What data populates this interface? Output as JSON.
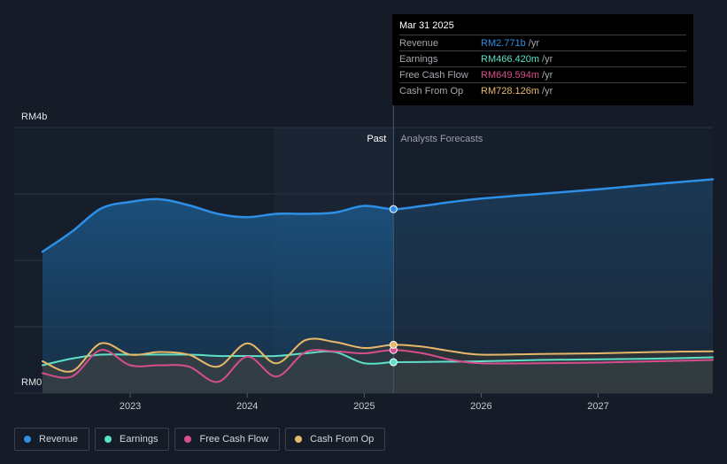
{
  "chart_data": {
    "type": "area",
    "currency": "RM",
    "y_axis": {
      "top_label": "RM4b",
      "bottom_label": "RM0",
      "max": 4.0,
      "min": 0
    },
    "x_ticks": [
      "2023",
      "2024",
      "2025",
      "2026",
      "2027"
    ],
    "x_tick_values": [
      2023.0,
      2024.0,
      2025.0,
      2026.0,
      2027.0
    ],
    "x_range": [
      2022.25,
      2027.98
    ],
    "divider_x": 2025.25,
    "past_start_x": 2024.23,
    "past_label": "Past",
    "forecast_label": "Analysts Forecasts",
    "series": [
      {
        "name": "Revenue",
        "color": "#2d8fe6",
        "points": [
          [
            2022.25,
            2.13
          ],
          [
            2022.5,
            2.43
          ],
          [
            2022.75,
            2.78
          ],
          [
            2023.0,
            2.88
          ],
          [
            2023.25,
            2.92
          ],
          [
            2023.5,
            2.83
          ],
          [
            2023.75,
            2.7
          ],
          [
            2024.0,
            2.65
          ],
          [
            2024.25,
            2.7
          ],
          [
            2024.5,
            2.7
          ],
          [
            2024.75,
            2.72
          ],
          [
            2025.0,
            2.82
          ],
          [
            2025.25,
            2.771
          ],
          [
            2025.5,
            2.82
          ],
          [
            2025.75,
            2.88
          ],
          [
            2026.0,
            2.93
          ],
          [
            2026.5,
            3.0
          ],
          [
            2027.0,
            3.07
          ],
          [
            2027.5,
            3.15
          ],
          [
            2027.98,
            3.22
          ]
        ]
      },
      {
        "name": "Earnings",
        "color": "#5ce0c8",
        "points": [
          [
            2022.25,
            0.42
          ],
          [
            2022.5,
            0.52
          ],
          [
            2022.75,
            0.58
          ],
          [
            2023.0,
            0.58
          ],
          [
            2023.5,
            0.58
          ],
          [
            2023.75,
            0.56
          ],
          [
            2024.0,
            0.56
          ],
          [
            2024.25,
            0.56
          ],
          [
            2024.5,
            0.6
          ],
          [
            2024.75,
            0.62
          ],
          [
            2025.0,
            0.45
          ],
          [
            2025.25,
            0.466
          ],
          [
            2025.5,
            0.47
          ],
          [
            2026.0,
            0.48
          ],
          [
            2026.5,
            0.5
          ],
          [
            2027.0,
            0.51
          ],
          [
            2027.5,
            0.52
          ],
          [
            2027.98,
            0.54
          ]
        ]
      },
      {
        "name": "Free Cash Flow",
        "color": "#d64e8c",
        "points": [
          [
            2022.25,
            0.3
          ],
          [
            2022.5,
            0.25
          ],
          [
            2022.75,
            0.65
          ],
          [
            2023.0,
            0.42
          ],
          [
            2023.25,
            0.42
          ],
          [
            2023.5,
            0.4
          ],
          [
            2023.75,
            0.17
          ],
          [
            2024.0,
            0.55
          ],
          [
            2024.25,
            0.25
          ],
          [
            2024.5,
            0.62
          ],
          [
            2024.75,
            0.63
          ],
          [
            2025.0,
            0.6
          ],
          [
            2025.25,
            0.65
          ],
          [
            2025.5,
            0.6
          ],
          [
            2025.75,
            0.5
          ],
          [
            2026.0,
            0.45
          ],
          [
            2026.5,
            0.45
          ],
          [
            2027.0,
            0.46
          ],
          [
            2027.5,
            0.48
          ],
          [
            2027.98,
            0.5
          ]
        ]
      },
      {
        "name": "Cash From Op",
        "color": "#e8b86a",
        "points": [
          [
            2022.25,
            0.48
          ],
          [
            2022.5,
            0.33
          ],
          [
            2022.75,
            0.75
          ],
          [
            2023.0,
            0.58
          ],
          [
            2023.25,
            0.62
          ],
          [
            2023.5,
            0.58
          ],
          [
            2023.75,
            0.4
          ],
          [
            2024.0,
            0.75
          ],
          [
            2024.25,
            0.45
          ],
          [
            2024.5,
            0.8
          ],
          [
            2024.75,
            0.77
          ],
          [
            2025.0,
            0.68
          ],
          [
            2025.25,
            0.728
          ],
          [
            2025.5,
            0.7
          ],
          [
            2025.75,
            0.63
          ],
          [
            2026.0,
            0.58
          ],
          [
            2026.5,
            0.59
          ],
          [
            2027.0,
            0.6
          ],
          [
            2027.5,
            0.62
          ],
          [
            2027.98,
            0.63
          ]
        ]
      }
    ],
    "tooltip": {
      "date": "Mar 31 2025",
      "rows": [
        {
          "label": "Revenue",
          "value": "RM2.771b",
          "unit": "/yr",
          "color": "#2d8fe6"
        },
        {
          "label": "Earnings",
          "value": "RM466.420m",
          "unit": "/yr",
          "color": "#5ce0c8"
        },
        {
          "label": "Free Cash Flow",
          "value": "RM649.594m",
          "unit": "/yr",
          "color": "#d64e8c"
        },
        {
          "label": "Cash From Op",
          "value": "RM728.126m",
          "unit": "/yr",
          "color": "#e8b86a"
        }
      ]
    }
  },
  "legend": [
    {
      "label": "Revenue",
      "color": "#2d8fe6"
    },
    {
      "label": "Earnings",
      "color": "#5ce0c8"
    },
    {
      "label": "Free Cash Flow",
      "color": "#d64e8c"
    },
    {
      "label": "Cash From Op",
      "color": "#e8b86a"
    }
  ]
}
